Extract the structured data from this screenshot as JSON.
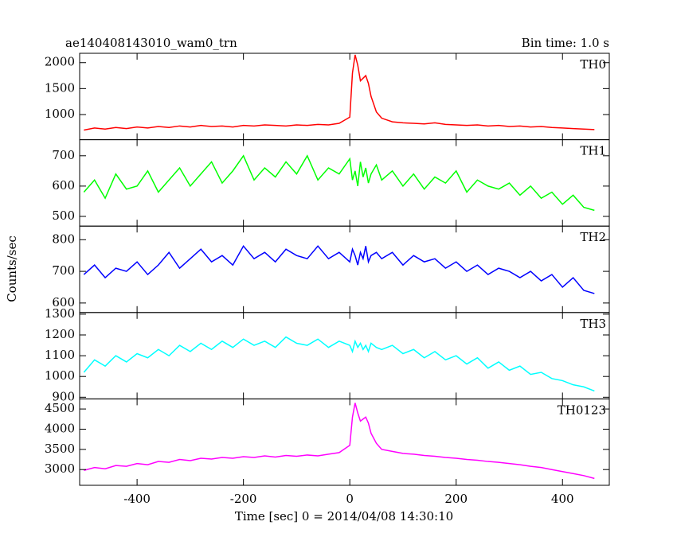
{
  "title": "ae140408143010_wam0_trn",
  "subtitle": "Bin time: 1.0 s",
  "y_label": "Counts/sec",
  "x_label": "Time [sec] 0 = 2014/04/08 14:30:10",
  "chart_data": [
    {
      "type": "line",
      "label": "TH0",
      "color": "#ff0000",
      "x": [
        -500,
        -480,
        -460,
        -440,
        -420,
        -400,
        -380,
        -360,
        -340,
        -320,
        -300,
        -280,
        -260,
        -240,
        -220,
        -200,
        -180,
        -160,
        -140,
        -120,
        -100,
        -80,
        -60,
        -40,
        -20,
        0,
        5,
        10,
        15,
        20,
        25,
        30,
        35,
        40,
        50,
        60,
        80,
        100,
        120,
        140,
        160,
        180,
        200,
        220,
        240,
        260,
        280,
        300,
        320,
        340,
        360,
        380,
        400,
        420,
        440,
        460
      ],
      "values": [
        700,
        740,
        720,
        750,
        730,
        760,
        740,
        770,
        750,
        780,
        760,
        790,
        770,
        780,
        760,
        790,
        780,
        800,
        790,
        780,
        800,
        790,
        810,
        800,
        830,
        950,
        1800,
        2150,
        1950,
        1650,
        1700,
        1750,
        1600,
        1350,
        1050,
        930,
        860,
        840,
        830,
        820,
        840,
        810,
        800,
        790,
        800,
        780,
        790,
        770,
        780,
        760,
        770,
        750,
        740,
        730,
        720,
        710
      ],
      "xlim": [
        -508,
        488
      ],
      "xticks": [
        -400,
        -200,
        0,
        200,
        400
      ],
      "ylim": [
        515,
        2180
      ],
      "yticks": [
        1000,
        1500,
        2000
      ]
    },
    {
      "type": "line",
      "label": "TH1",
      "color": "#00ff00",
      "x": [
        -500,
        -480,
        -460,
        -440,
        -420,
        -400,
        -380,
        -360,
        -340,
        -320,
        -300,
        -280,
        -260,
        -240,
        -220,
        -200,
        -180,
        -160,
        -140,
        -120,
        -100,
        -80,
        -60,
        -40,
        -20,
        0,
        5,
        10,
        15,
        20,
        25,
        30,
        35,
        40,
        50,
        60,
        80,
        100,
        120,
        140,
        160,
        180,
        200,
        220,
        240,
        260,
        280,
        300,
        320,
        340,
        360,
        380,
        400,
        420,
        440,
        460
      ],
      "values": [
        580,
        620,
        560,
        640,
        590,
        600,
        650,
        580,
        620,
        660,
        600,
        640,
        680,
        610,
        650,
        700,
        620,
        660,
        630,
        680,
        640,
        700,
        620,
        660,
        640,
        690,
        620,
        650,
        600,
        680,
        630,
        660,
        610,
        640,
        670,
        620,
        650,
        600,
        640,
        590,
        630,
        610,
        650,
        580,
        620,
        600,
        590,
        610,
        570,
        600,
        560,
        580,
        540,
        570,
        530,
        520
      ],
      "xlim": [
        -508,
        488
      ],
      "xticks": [
        -400,
        -200,
        0,
        200,
        400
      ],
      "ylim": [
        468,
        753
      ],
      "yticks": [
        500,
        600,
        700
      ]
    },
    {
      "type": "line",
      "label": "TH2",
      "color": "#0000ff",
      "x": [
        -500,
        -480,
        -460,
        -440,
        -420,
        -400,
        -380,
        -360,
        -340,
        -320,
        -300,
        -280,
        -260,
        -240,
        -220,
        -200,
        -180,
        -160,
        -140,
        -120,
        -100,
        -80,
        -60,
        -40,
        -20,
        0,
        5,
        10,
        15,
        20,
        25,
        30,
        35,
        40,
        50,
        60,
        80,
        100,
        120,
        140,
        160,
        180,
        200,
        220,
        240,
        260,
        280,
        300,
        320,
        340,
        360,
        380,
        400,
        420,
        440,
        460
      ],
      "values": [
        690,
        720,
        680,
        710,
        700,
        730,
        690,
        720,
        760,
        710,
        740,
        770,
        730,
        750,
        720,
        780,
        740,
        760,
        730,
        770,
        750,
        740,
        780,
        740,
        760,
        730,
        770,
        750,
        720,
        760,
        740,
        780,
        730,
        750,
        760,
        740,
        760,
        720,
        750,
        730,
        740,
        710,
        730,
        700,
        720,
        690,
        710,
        700,
        680,
        700,
        670,
        690,
        650,
        680,
        640,
        630
      ],
      "xlim": [
        -508,
        488
      ],
      "xticks": [
        -400,
        -200,
        0,
        200,
        400
      ],
      "ylim": [
        570,
        843
      ],
      "yticks": [
        600,
        700,
        800
      ]
    },
    {
      "type": "line",
      "label": "TH3",
      "color": "#00ffff",
      "x": [
        -500,
        -480,
        -460,
        -440,
        -420,
        -400,
        -380,
        -360,
        -340,
        -320,
        -300,
        -280,
        -260,
        -240,
        -220,
        -200,
        -180,
        -160,
        -140,
        -120,
        -100,
        -80,
        -60,
        -40,
        -20,
        0,
        5,
        10,
        15,
        20,
        25,
        30,
        35,
        40,
        50,
        60,
        80,
        100,
        120,
        140,
        160,
        180,
        200,
        220,
        240,
        260,
        280,
        300,
        320,
        340,
        360,
        380,
        400,
        420,
        440,
        460
      ],
      "values": [
        1020,
        1080,
        1050,
        1100,
        1070,
        1110,
        1090,
        1130,
        1100,
        1150,
        1120,
        1160,
        1130,
        1170,
        1140,
        1180,
        1150,
        1170,
        1140,
        1190,
        1160,
        1150,
        1180,
        1140,
        1170,
        1150,
        1120,
        1170,
        1140,
        1160,
        1130,
        1150,
        1120,
        1160,
        1140,
        1130,
        1150,
        1110,
        1130,
        1090,
        1120,
        1080,
        1100,
        1060,
        1090,
        1040,
        1070,
        1030,
        1050,
        1010,
        1020,
        990,
        980,
        960,
        950,
        930
      ],
      "xlim": [
        -508,
        488
      ],
      "xticks": [
        -400,
        -200,
        0,
        200,
        400
      ],
      "ylim": [
        892,
        1308
      ],
      "yticks": [
        900,
        1000,
        1100,
        1200,
        1300
      ]
    },
    {
      "type": "line",
      "label": "TH0123",
      "color": "#ff00ff",
      "x": [
        -500,
        -480,
        -460,
        -440,
        -420,
        -400,
        -380,
        -360,
        -340,
        -320,
        -300,
        -280,
        -260,
        -240,
        -220,
        -200,
        -180,
        -160,
        -140,
        -120,
        -100,
        -80,
        -60,
        -40,
        -20,
        0,
        5,
        10,
        15,
        20,
        25,
        30,
        35,
        40,
        50,
        60,
        80,
        100,
        120,
        140,
        160,
        180,
        200,
        220,
        240,
        260,
        280,
        300,
        320,
        340,
        360,
        380,
        400,
        420,
        440,
        460
      ],
      "values": [
        2980,
        3050,
        3020,
        3100,
        3080,
        3150,
        3120,
        3200,
        3180,
        3250,
        3220,
        3280,
        3260,
        3300,
        3280,
        3320,
        3300,
        3340,
        3310,
        3350,
        3330,
        3360,
        3340,
        3380,
        3420,
        3600,
        4300,
        4650,
        4400,
        4200,
        4250,
        4300,
        4150,
        3900,
        3650,
        3500,
        3450,
        3400,
        3380,
        3350,
        3330,
        3300,
        3280,
        3250,
        3230,
        3200,
        3180,
        3150,
        3120,
        3080,
        3050,
        3000,
        2950,
        2900,
        2850,
        2780
      ],
      "xlim": [
        -508,
        488
      ],
      "xticks": [
        -400,
        -200,
        0,
        200,
        400
      ],
      "ylim": [
        2610,
        4750
      ],
      "yticks": [
        3000,
        3500,
        4000,
        4500
      ]
    }
  ]
}
